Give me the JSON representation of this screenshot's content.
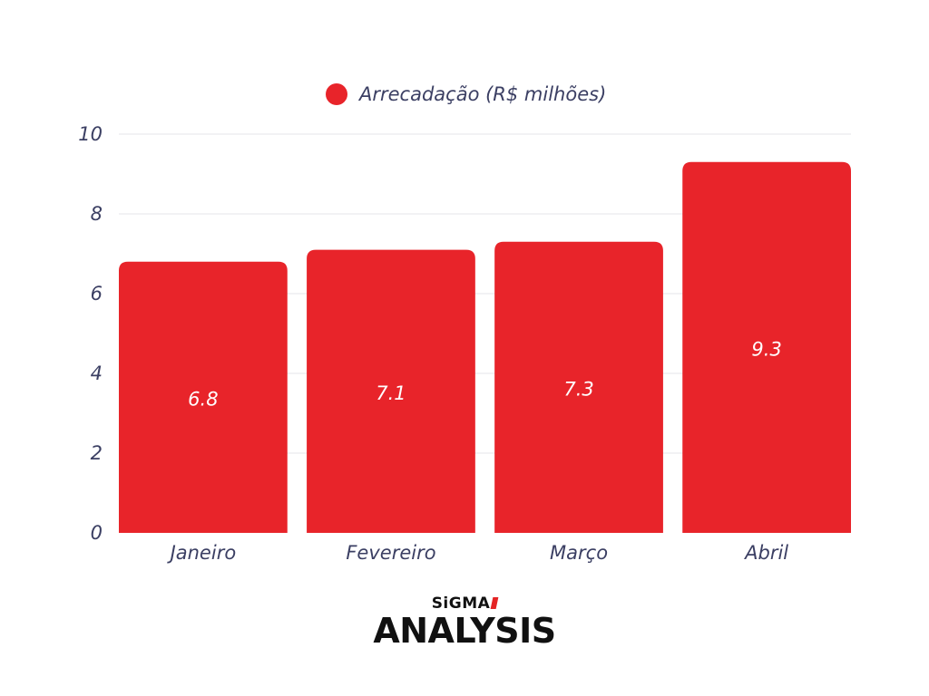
{
  "chart_data": {
    "type": "bar",
    "categories": [
      "Janeiro",
      "Fevereiro",
      "Março",
      "Abril"
    ],
    "series": [
      {
        "name": "Arrecadação (R$ milhões)",
        "values": [
          6.8,
          7.1,
          7.3,
          9.3
        ],
        "color": "#e8242a"
      }
    ],
    "data_labels": [
      "6.8",
      "7.1",
      "7.3",
      "9.3"
    ],
    "ylim": [
      0,
      10
    ],
    "yticks": [
      0,
      2,
      4,
      6,
      8,
      10
    ],
    "grid": true,
    "legend": "top-center"
  },
  "logo": {
    "top": "SiGMA",
    "bottom": "ANALYSIS"
  }
}
